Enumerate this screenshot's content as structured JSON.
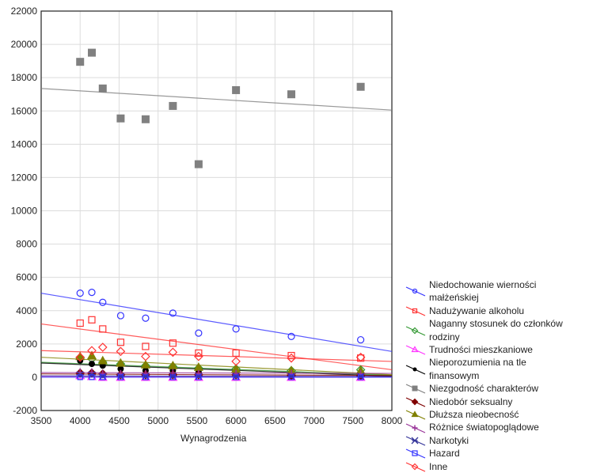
{
  "chart_data": {
    "type": "scatter",
    "title": "",
    "xlabel": "Wynagrodzenia",
    "ylabel": "",
    "xlim": [
      3500,
      8000
    ],
    "ylim": [
      -2000,
      22000
    ],
    "xticks": [
      3500,
      4000,
      4500,
      5000,
      5500,
      6000,
      6500,
      7000,
      7500,
      8000
    ],
    "yticks": [
      -2000,
      0,
      2000,
      4000,
      6000,
      8000,
      10000,
      12000,
      14000,
      16000,
      18000,
      20000,
      22000
    ],
    "grid": true,
    "legend_position": "right",
    "x": [
      4000,
      4150,
      4290,
      4520,
      4840,
      5190,
      5520,
      6000,
      6710,
      7600
    ],
    "series": [
      {
        "name": "Niedochowanie wierności małżeńskiej",
        "color": "#3333ff",
        "marker": "circle",
        "values": [
          5050,
          5100,
          4500,
          3700,
          3550,
          3850,
          2650,
          2900,
          2450,
          2250
        ],
        "fit": [
          5050,
          1550
        ]
      },
      {
        "name": "Nadużywanie alkoholu",
        "color": "#ff3333",
        "marker": "square",
        "values": [
          3250,
          3450,
          2900,
          2100,
          1850,
          2050,
          1450,
          1450,
          1300,
          1150
        ],
        "fit": [
          3200,
          450
        ]
      },
      {
        "name": "Naganny stosunek do członków rodziny",
        "color": "#339933",
        "marker": "diamond",
        "values": [
          1150,
          1100,
          900,
          800,
          700,
          650,
          550,
          500,
          400,
          450
        ],
        "fit": [
          900,
          120
        ]
      },
      {
        "name": "Trudności mieszkaniowe",
        "color": "#ff33ff",
        "marker": "triangle-open",
        "values": [
          100,
          50,
          0,
          0,
          0,
          0,
          0,
          0,
          0,
          0
        ],
        "fit": [
          60,
          20
        ]
      },
      {
        "name": "Nieporozumienia na tle finansowym",
        "color": "#000000",
        "marker": "dot",
        "values": [
          1000,
          800,
          700,
          500,
          400,
          400,
          300,
          250,
          200,
          150
        ],
        "fit": [
          850,
          60
        ]
      },
      {
        "name": "Niezgodność charakterów",
        "color": "#808080",
        "marker": "square-filled",
        "values": [
          18950,
          19500,
          17350,
          15550,
          15500,
          16300,
          12800,
          17250,
          17000,
          17450
        ],
        "fit": [
          17350,
          16050
        ]
      },
      {
        "name": "Niedobór seksualny",
        "color": "#800000",
        "marker": "diamond-filled",
        "values": [
          250,
          250,
          200,
          150,
          150,
          150,
          150,
          150,
          100,
          100
        ],
        "fit": [
          200,
          100
        ]
      },
      {
        "name": "Dłuższa nieobecność",
        "color": "#808000",
        "marker": "triangle",
        "values": [
          1250,
          1300,
          1000,
          850,
          750,
          700,
          600,
          500,
          400,
          400
        ],
        "fit": [
          1200,
          150
        ]
      },
      {
        "name": "Różnice światopoglądowe",
        "color": "#993399",
        "marker": "plus",
        "values": [
          300,
          300,
          200,
          200,
          200,
          250,
          200,
          200,
          200,
          200
        ],
        "fit": [
          280,
          230
        ]
      },
      {
        "name": "Narkotyki",
        "color": "#333399",
        "marker": "star",
        "values": [
          150,
          150,
          50,
          50,
          50,
          50,
          50,
          50,
          50,
          50
        ],
        "fit": [
          80,
          40
        ]
      },
      {
        "name": "Hazard",
        "color": "#3333ff",
        "marker": "square-small",
        "values": [
          0,
          0,
          0,
          0,
          0,
          0,
          0,
          0,
          0,
          0
        ],
        "fit": [
          0,
          0
        ]
      },
      {
        "name": "Inne",
        "color": "#ff3333",
        "marker": "diamond-open",
        "values": [
          1200,
          1600,
          1800,
          1550,
          1250,
          1500,
          1250,
          950,
          1150,
          1200
        ],
        "fit": [
          1600,
          950
        ]
      }
    ]
  }
}
